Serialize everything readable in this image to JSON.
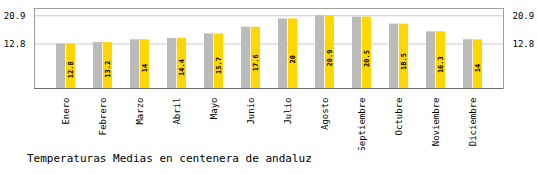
{
  "chart_data": {
    "type": "bar",
    "title": "Temperaturas Medias en centenera de andaluz",
    "categories": [
      "Enero",
      "Febrero",
      "Marzo",
      "Abril",
      "Mayo",
      "Junio",
      "Julio",
      "Agosto",
      "Septiembre",
      "Octubre",
      "Noviembre",
      "Diciembre"
    ],
    "series": [
      {
        "color": "#BBBBBB",
        "values": [
          12.8,
          13.2,
          14.0,
          14.4,
          15.7,
          17.6,
          20.0,
          20.9,
          20.5,
          18.5,
          16.3,
          14.0
        ]
      },
      {
        "color": "#FFD700",
        "values": [
          12.8,
          13.2,
          14.0,
          14.4,
          15.7,
          17.6,
          20.0,
          20.9,
          20.5,
          18.5,
          16.3,
          14.0
        ],
        "data_labels": true
      }
    ],
    "ylim": [
      0,
      22.99
    ],
    "yticks": [
      12.8,
      20.9
    ],
    "grid": true
  }
}
